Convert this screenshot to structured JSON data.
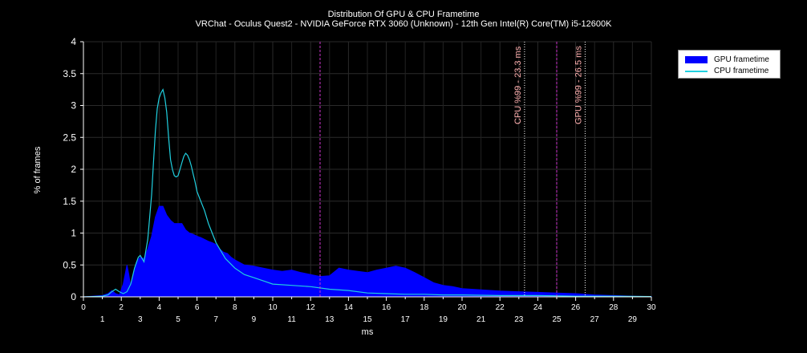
{
  "chart_data": {
    "type": "area",
    "title": "Distribution Of GPU & CPU Frametime",
    "subtitle": "VRChat - Oculus Quest2 - NVIDIA GeForce RTX 3060 (Unknown) - 12th Gen Intel(R) Core(TM) i5-12600K",
    "xlabel": "ms",
    "ylabel": "% of frames",
    "xlim": [
      0,
      30
    ],
    "ylim": [
      0,
      4
    ],
    "x_ticks_major": [
      "0",
      "2",
      "4",
      "6",
      "8",
      "10",
      "12",
      "14",
      "16",
      "18",
      "20",
      "22",
      "24",
      "26",
      "28",
      "30"
    ],
    "x_ticks_minor": [
      "1",
      "3",
      "5",
      "7",
      "9",
      "11",
      "13",
      "15",
      "17",
      "19",
      "21",
      "23",
      "25",
      "27",
      "29"
    ],
    "y_ticks": [
      "0",
      "0.5",
      "1",
      "1.5",
      "2",
      "2.5",
      "3",
      "3.5",
      "4"
    ],
    "grid": true,
    "legend_position": "top-right",
    "colors": {
      "gpu": "#0000ff",
      "cpu": "#20d0e0",
      "marker_line": "#cc33cc",
      "p99_line": "#ffffff",
      "p99_text": "#ffb0b0"
    },
    "series": [
      {
        "name": "GPU frametime",
        "style": "area",
        "x": [
          0,
          1,
          1.3,
          1.5,
          1.7,
          1.9,
          2.1,
          2.3,
          2.4,
          2.5,
          2.6,
          2.8,
          3.0,
          3.2,
          3.4,
          3.6,
          3.8,
          4.0,
          4.2,
          4.4,
          4.6,
          4.8,
          5.0,
          5.2,
          5.4,
          5.6,
          5.8,
          6.0,
          6.2,
          6.4,
          6.6,
          6.8,
          7.0,
          7.2,
          7.4,
          7.6,
          7.8,
          8.0,
          8.5,
          9.0,
          9.5,
          10.0,
          10.5,
          11.0,
          11.5,
          12.0,
          12.5,
          13.0,
          13.5,
          14.0,
          14.5,
          15.0,
          15.5,
          16.0,
          16.5,
          17.0,
          17.5,
          18.0,
          18.5,
          19.0,
          19.5,
          20.0,
          21.0,
          22.0,
          23.0,
          24.0,
          25.0,
          26.0,
          27.0,
          28.0,
          29.0,
          30.0
        ],
        "values": [
          0,
          0.02,
          0.05,
          0.1,
          0.05,
          0.03,
          0.2,
          0.5,
          0.35,
          0.15,
          0.3,
          0.55,
          0.62,
          0.6,
          0.75,
          0.95,
          1.25,
          1.42,
          1.42,
          1.28,
          1.2,
          1.15,
          1.15,
          1.15,
          1.05,
          1.0,
          0.98,
          0.95,
          0.93,
          0.9,
          0.87,
          0.85,
          0.82,
          0.75,
          0.7,
          0.68,
          0.62,
          0.58,
          0.5,
          0.48,
          0.45,
          0.42,
          0.4,
          0.42,
          0.38,
          0.35,
          0.32,
          0.33,
          0.45,
          0.42,
          0.4,
          0.38,
          0.42,
          0.45,
          0.48,
          0.45,
          0.38,
          0.3,
          0.22,
          0.18,
          0.16,
          0.13,
          0.11,
          0.09,
          0.08,
          0.07,
          0.06,
          0.05,
          0.03,
          0.02,
          0.01,
          0.005
        ]
      },
      {
        "name": "CPU frametime",
        "style": "line",
        "x": [
          0,
          1,
          1.3,
          1.5,
          1.7,
          1.9,
          2.1,
          2.3,
          2.5,
          2.7,
          2.9,
          3.0,
          3.2,
          3.4,
          3.6,
          3.7,
          3.8,
          3.9,
          4.0,
          4.1,
          4.2,
          4.3,
          4.4,
          4.5,
          4.6,
          4.7,
          4.8,
          4.9,
          5.0,
          5.1,
          5.2,
          5.3,
          5.4,
          5.5,
          5.6,
          5.7,
          5.8,
          5.9,
          6.0,
          6.2,
          6.4,
          6.6,
          6.8,
          7.0,
          7.5,
          8.0,
          8.5,
          9.0,
          9.5,
          10.0,
          11.0,
          12.0,
          13.0,
          14.0,
          15.0,
          16.0,
          17.0,
          18.0,
          19.0,
          20.0,
          22.0,
          24.0,
          26.0,
          28.0,
          30.0
        ],
        "values": [
          0,
          0.01,
          0.03,
          0.08,
          0.12,
          0.08,
          0.05,
          0.08,
          0.2,
          0.45,
          0.62,
          0.65,
          0.55,
          0.9,
          1.6,
          2.1,
          2.6,
          2.95,
          3.12,
          3.2,
          3.25,
          3.12,
          2.9,
          2.5,
          2.15,
          2.0,
          1.9,
          1.88,
          1.9,
          2.0,
          2.1,
          2.2,
          2.25,
          2.22,
          2.15,
          2.05,
          1.92,
          1.8,
          1.65,
          1.5,
          1.35,
          1.15,
          1.0,
          0.85,
          0.6,
          0.45,
          0.35,
          0.3,
          0.25,
          0.2,
          0.18,
          0.16,
          0.12,
          0.1,
          0.06,
          0.05,
          0.04,
          0.04,
          0.03,
          0.03,
          0.02,
          0.02,
          0.01,
          0.01,
          0.005
        ]
      }
    ],
    "vertical_markers": [
      {
        "x": 12.5,
        "style": "magenta-dashed"
      },
      {
        "x": 25.0,
        "style": "magenta-dashed"
      }
    ],
    "percentile_markers": [
      {
        "x": 23.3,
        "label": "CPU %99 - 23.3 ms"
      },
      {
        "x": 26.5,
        "label": "GPU %99 - 26.5 ms"
      }
    ]
  }
}
